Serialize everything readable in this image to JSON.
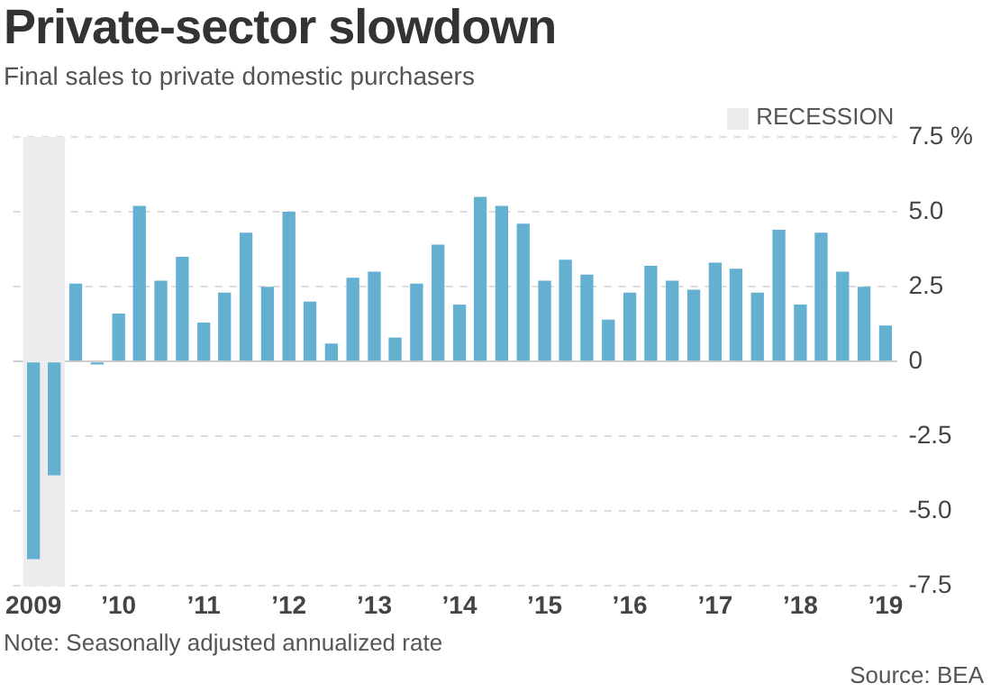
{
  "chart_data": {
    "type": "bar",
    "title": "Private-sector slowdown",
    "subtitle": "Final sales to private domestic purchasers",
    "x": [
      "2009-02-15",
      "2009-05-15",
      "2009-08-15",
      "2009-11-15",
      "2010-02-15",
      "2010-05-15",
      "2010-08-15",
      "2010-11-15",
      "2011-02-15",
      "2011-05-15",
      "2011-08-15",
      "2011-11-15",
      "2012-02-15",
      "2012-05-15",
      "2012-08-15",
      "2012-11-15",
      "2013-02-15",
      "2013-05-15",
      "2013-08-15",
      "2013-11-15",
      "2014-02-15",
      "2014-05-15",
      "2014-08-15",
      "2014-11-15",
      "2015-02-15",
      "2015-05-15",
      "2015-08-15",
      "2015-11-15",
      "2016-02-15",
      "2016-05-15",
      "2016-08-15",
      "2016-11-15",
      "2017-02-15",
      "2017-05-15",
      "2017-08-15",
      "2017-11-15",
      "2018-02-15",
      "2018-05-15",
      "2018-08-15",
      "2018-11-15",
      "2019-02-15"
    ],
    "values": [
      -6.6,
      -3.8,
      2.6,
      -0.1,
      1.6,
      5.2,
      2.7,
      3.5,
      1.3,
      2.3,
      4.3,
      2.5,
      5.0,
      2.0,
      0.6,
      2.8,
      3.0,
      0.8,
      2.6,
      3.9,
      1.9,
      5.5,
      5.2,
      4.6,
      2.7,
      3.4,
      2.9,
      1.4,
      2.3,
      3.2,
      2.7,
      2.4,
      3.3,
      3.1,
      2.3,
      4.4,
      1.9,
      4.3,
      3.0,
      2.5,
      1.2
    ],
    "color": "#63b0d0",
    "xlim": [
      "2008-11-20",
      "2019-04-08"
    ],
    "xticks": [
      {
        "value": "2009-02-15",
        "label": "2009"
      },
      {
        "value": "2010-02-15",
        "label": "’10"
      },
      {
        "value": "2011-02-15",
        "label": "’11"
      },
      {
        "value": "2012-02-15",
        "label": "’12"
      },
      {
        "value": "2013-02-15",
        "label": "’13"
      },
      {
        "value": "2014-02-15",
        "label": "’14"
      },
      {
        "value": "2015-02-15",
        "label": "’15"
      },
      {
        "value": "2016-02-15",
        "label": "’16"
      },
      {
        "value": "2017-02-15",
        "label": "’17"
      },
      {
        "value": "2018-02-15",
        "label": "’18"
      },
      {
        "value": "2019-02-15",
        "label": "’19"
      }
    ],
    "ylim": [
      -7.5,
      7.5
    ],
    "yticks": [
      {
        "value": -7.5,
        "label": "-7.5"
      },
      {
        "value": -5,
        "label": "-5.0"
      },
      {
        "value": -2.5,
        "label": "-2.5"
      },
      0,
      {
        "value": 2.5,
        "label": "2.5"
      },
      {
        "value": 5,
        "label": "5.0"
      },
      {
        "value": 7.5,
        "label": "7.5 %"
      }
    ],
    "grid": "y",
    "bands": [
      {
        "axis": "x",
        "from": "2009-01-01",
        "to": "2009-06-30",
        "label": "RECESSION",
        "color": "#ececee"
      }
    ],
    "annotations": [
      "Note: Seasonally adjusted annualized rate",
      "Source: BEA"
    ]
  }
}
